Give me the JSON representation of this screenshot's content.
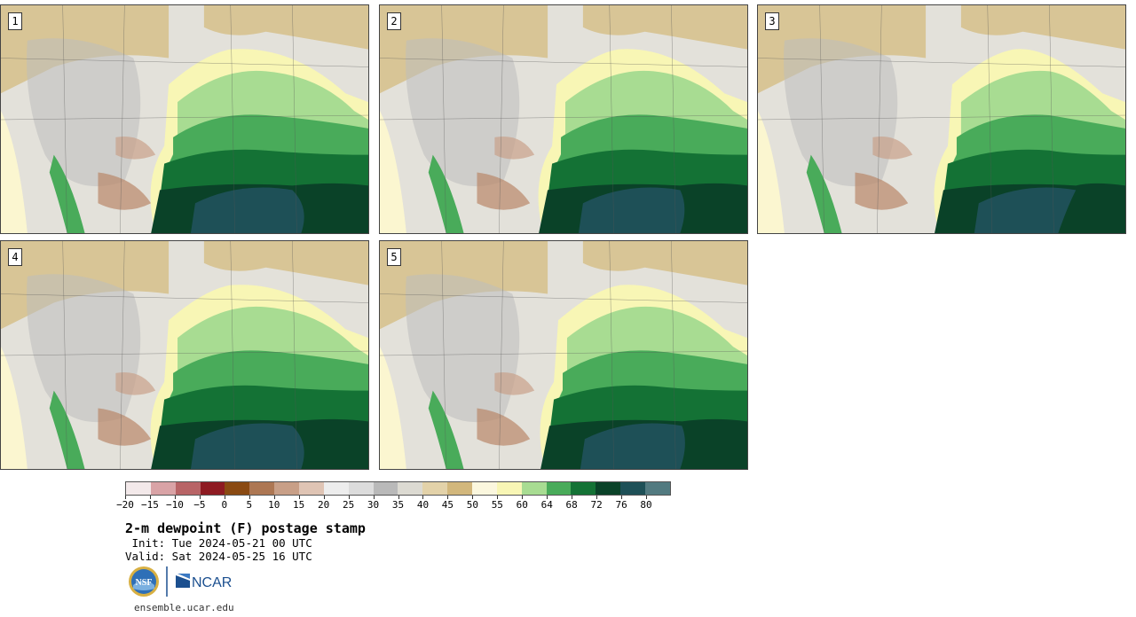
{
  "stamps": [
    {
      "label": "1"
    },
    {
      "label": "2"
    },
    {
      "label": "3"
    },
    {
      "label": "4"
    },
    {
      "label": "5"
    }
  ],
  "colorbar": {
    "colors": [
      "#f3e9ea",
      "#d9a3a6",
      "#b86466",
      "#8e1b22",
      "#8a4a12",
      "#ad7753",
      "#c89f87",
      "#dfc4b4",
      "#ededed",
      "#dcdcdc",
      "#b9b9b9",
      "#dcdad2",
      "#e3d2a9",
      "#d2b77c",
      "#fbf7de",
      "#f8f6b5",
      "#a8dc92",
      "#49ab5a",
      "#147235",
      "#0a4228",
      "#1e5057",
      "#527a80"
    ],
    "tick_labels": [
      "−20",
      "−15",
      "−10",
      "−5",
      "0",
      "5",
      "10",
      "15",
      "20",
      "25",
      "30",
      "35",
      "40",
      "45",
      "50",
      "55",
      "60",
      "64",
      "68",
      "72",
      "76",
      "80"
    ]
  },
  "title": "2-m dewpoint (F) postage stamp",
  "init": " Init: Tue 2024-05-21 00 UTC",
  "valid": "Valid: Sat 2024-05-25 16 UTC",
  "logos": {
    "nsf": "NSF",
    "ncar": "NCAR"
  },
  "url": "ensemble.ucar.edu"
}
